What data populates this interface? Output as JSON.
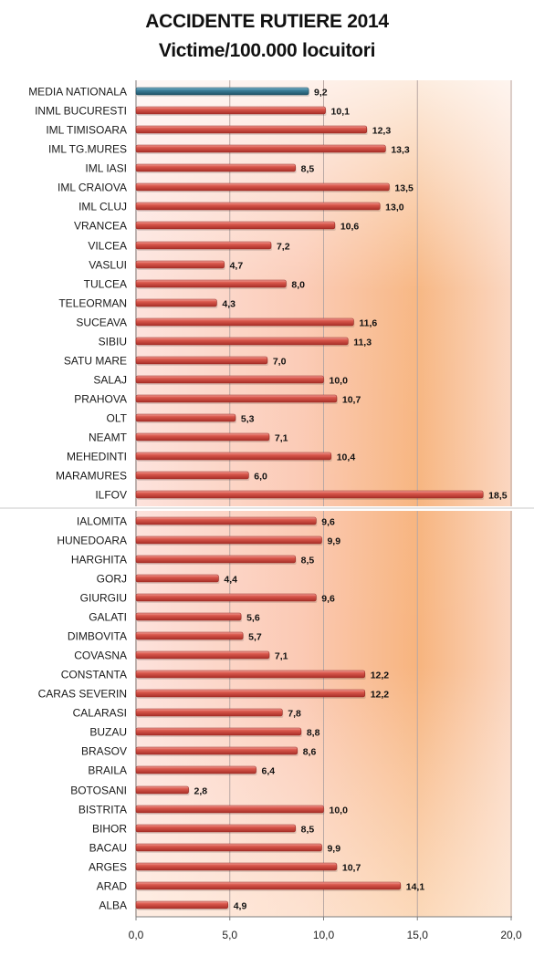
{
  "chart_data": {
    "type": "bar",
    "orientation": "horizontal",
    "title": "ACCIDENTE RUTIERE 2014",
    "subtitle": "Victime/100.000 locuitori",
    "xlim": [
      0,
      20
    ],
    "xticks": [
      "0,0",
      "5,0",
      "10,0",
      "15,0",
      "20,0"
    ],
    "grid": true,
    "colors": {
      "national_average": "#2f6e86",
      "bars": "#c8443c",
      "background_light": "#fde8e6",
      "background_orange": "#f6b57c"
    },
    "categories": [
      "MEDIA NATIONALA",
      "INML BUCURESTI",
      "IML TIMISOARA",
      "IML TG.MURES",
      "IML IASI",
      "IML CRAIOVA",
      "IML CLUJ",
      "VRANCEA",
      "VILCEA",
      "VASLUI",
      "TULCEA",
      "TELEORMAN",
      "SUCEAVA",
      "SIBIU",
      "SATU MARE",
      "SALAJ",
      "PRAHOVA",
      "OLT",
      "NEAMT",
      "MEHEDINTI",
      "MARAMURES",
      "ILFOV",
      "IALOMITA",
      "HUNEDOARA",
      "HARGHITA",
      "GORJ",
      "GIURGIU",
      "GALATI",
      "DIMBOVITA",
      "COVASNA",
      "CONSTANTA",
      "CARAS SEVERIN",
      "CALARASI",
      "BUZAU",
      "BRASOV",
      "BRAILA",
      "BOTOSANI",
      "BISTRITA",
      "BIHOR",
      "BACAU",
      "ARGES",
      "ARAD",
      "ALBA"
    ],
    "values": [
      9.2,
      10.1,
      12.3,
      13.3,
      8.5,
      13.5,
      13.0,
      10.6,
      7.2,
      4.7,
      8.0,
      4.3,
      11.6,
      11.3,
      7.0,
      10.0,
      10.7,
      5.3,
      7.1,
      10.4,
      6.0,
      18.5,
      9.6,
      9.9,
      8.5,
      4.4,
      9.6,
      5.6,
      5.7,
      7.1,
      12.2,
      12.2,
      7.8,
      8.8,
      8.6,
      6.4,
      2.8,
      10.0,
      8.5,
      9.9,
      10.7,
      14.1,
      4.9
    ],
    "value_labels": [
      "9,2",
      "10,1",
      "12,3",
      "13,3",
      "8,5",
      "13,5",
      "13,0",
      "10,6",
      "7,2",
      "4,7",
      "8,0",
      "4,3",
      "11,6",
      "11,3",
      "7,0",
      "10,0",
      "10,7",
      "5,3",
      "7,1",
      "10,4",
      "6,0",
      "18,5",
      "9,6",
      "9,9",
      "8,5",
      "4,4",
      "9,6",
      "5,6",
      "5,7",
      "7,1",
      "12,2",
      "12,2",
      "7,8",
      "8,8",
      "8,6",
      "6,4",
      "2,8",
      "10,0",
      "8,5",
      "9,9",
      "10,7",
      "14,1",
      "4,9"
    ]
  }
}
